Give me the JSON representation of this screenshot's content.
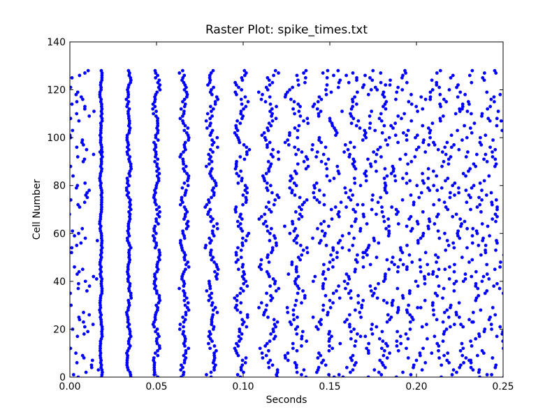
{
  "chart_data": {
    "type": "scatter",
    "title": "Raster Plot: spike_times.txt",
    "xlabel": "Seconds",
    "ylabel": "Cell Number",
    "xlim": [
      0.0,
      0.25
    ],
    "ylim": [
      0,
      140
    ],
    "xticks": [
      "0.00",
      "0.05",
      "0.10",
      "0.15",
      "0.20",
      "0.25"
    ],
    "xtick_values": [
      0.0,
      0.05,
      0.1,
      0.15,
      0.2,
      0.25
    ],
    "yticks": [
      "0",
      "20",
      "40",
      "60",
      "80",
      "100",
      "120",
      "140"
    ],
    "ytick_values": [
      0,
      20,
      40,
      60,
      80,
      100,
      120,
      140
    ],
    "grid": false,
    "marker_color": "#0000ff",
    "n_cells": 128,
    "spike_wave_times": [
      0.0025,
      0.018,
      0.034,
      0.05,
      0.066,
      0.082,
      0.099,
      0.115,
      0.131,
      0.148,
      0.164,
      0.18,
      0.196,
      0.213,
      0.229,
      0.245
    ],
    "wave_jitter": [
      0.0,
      0.0008,
      0.0015,
      0.0022,
      0.003,
      0.004,
      0.005,
      0.0062,
      0.0075,
      0.0088,
      0.01,
      0.011,
      0.012,
      0.013,
      0.014,
      0.015
    ]
  }
}
